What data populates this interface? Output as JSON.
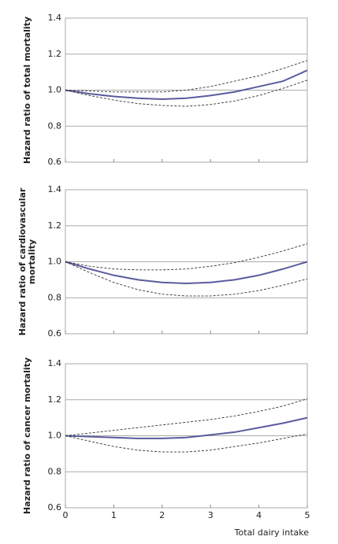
{
  "chart_data": [
    {
      "type": "line",
      "ylabel": [
        "Hazard ratio of total mortality"
      ],
      "x": [
        0,
        0.5,
        1,
        1.5,
        2,
        2.5,
        3,
        3.5,
        4,
        4.5,
        5
      ],
      "series": [
        {
          "color": "#5b5b9e",
          "dash": false,
          "values": [
            1.0,
            0.98,
            0.965,
            0.955,
            0.95,
            0.955,
            0.97,
            0.99,
            1.02,
            1.05,
            1.11
          ]
        },
        {
          "color": "#333333",
          "dash": true,
          "values": [
            1.0,
            0.995,
            0.99,
            0.99,
            0.99,
            1.0,
            1.02,
            1.05,
            1.08,
            1.12,
            1.165
          ]
        },
        {
          "color": "#333333",
          "dash": true,
          "values": [
            1.0,
            0.97,
            0.945,
            0.925,
            0.915,
            0.91,
            0.92,
            0.94,
            0.97,
            1.01,
            1.055
          ]
        }
      ],
      "xlim": [
        0,
        5
      ],
      "xticks": [
        0,
        1,
        2,
        3,
        4,
        5
      ],
      "ylim": [
        0.6,
        1.4
      ],
      "yticks": [
        0.6,
        0.8,
        {
          "value": 1.0,
          "label": "1.0"
        },
        1.2,
        1.4
      ],
      "grid": true
    },
    {
      "type": "line",
      "ylabel": [
        "Hazard ratio of cardiovascular",
        "mortality"
      ],
      "x": [
        0,
        0.5,
        1,
        1.5,
        2,
        2.5,
        3,
        3.5,
        4,
        4.5,
        5
      ],
      "series": [
        {
          "color": "#5b5b9e",
          "dash": false,
          "values": [
            1.0,
            0.96,
            0.925,
            0.9,
            0.885,
            0.88,
            0.885,
            0.9,
            0.925,
            0.96,
            1.0
          ]
        },
        {
          "color": "#333333",
          "dash": true,
          "values": [
            1.0,
            0.975,
            0.96,
            0.955,
            0.955,
            0.96,
            0.975,
            0.995,
            1.025,
            1.06,
            1.1
          ]
        },
        {
          "color": "#333333",
          "dash": true,
          "values": [
            1.0,
            0.94,
            0.885,
            0.845,
            0.82,
            0.81,
            0.81,
            0.82,
            0.84,
            0.87,
            0.905
          ]
        }
      ],
      "xlim": [
        0,
        5
      ],
      "xticks": [
        0,
        1,
        2,
        3,
        4,
        5
      ],
      "ylim": [
        0.6,
        1.4
      ],
      "yticks": [
        0.6,
        0.8,
        {
          "value": 1.0,
          "label": "1.0"
        },
        1.2,
        1.4
      ],
      "grid": true
    },
    {
      "type": "line",
      "ylabel": [
        "Hazard ratio of cancer mortality"
      ],
      "xlabel": "Total dairy intake",
      "x": [
        0,
        0.5,
        1,
        1.5,
        2,
        2.5,
        3,
        3.5,
        4,
        4.5,
        5
      ],
      "series": [
        {
          "color": "#5b5b9e",
          "dash": false,
          "values": [
            1.0,
            0.995,
            0.99,
            0.985,
            0.985,
            0.99,
            1.005,
            1.02,
            1.045,
            1.07,
            1.1
          ]
        },
        {
          "color": "#333333",
          "dash": true,
          "values": [
            1.0,
            1.015,
            1.03,
            1.045,
            1.06,
            1.075,
            1.09,
            1.11,
            1.135,
            1.165,
            1.205
          ]
        },
        {
          "color": "#333333",
          "dash": true,
          "values": [
            1.0,
            0.97,
            0.94,
            0.92,
            0.91,
            0.91,
            0.92,
            0.94,
            0.96,
            0.985,
            1.01
          ]
        }
      ],
      "xlim": [
        0,
        5
      ],
      "xticks": [
        0,
        1,
        2,
        3,
        4,
        5
      ],
      "ylim": [
        0.6,
        1.4
      ],
      "yticks": [
        0.6,
        0.8,
        {
          "value": 1.0,
          "label": "1.0"
        },
        1.2,
        1.4
      ],
      "grid": true
    }
  ]
}
